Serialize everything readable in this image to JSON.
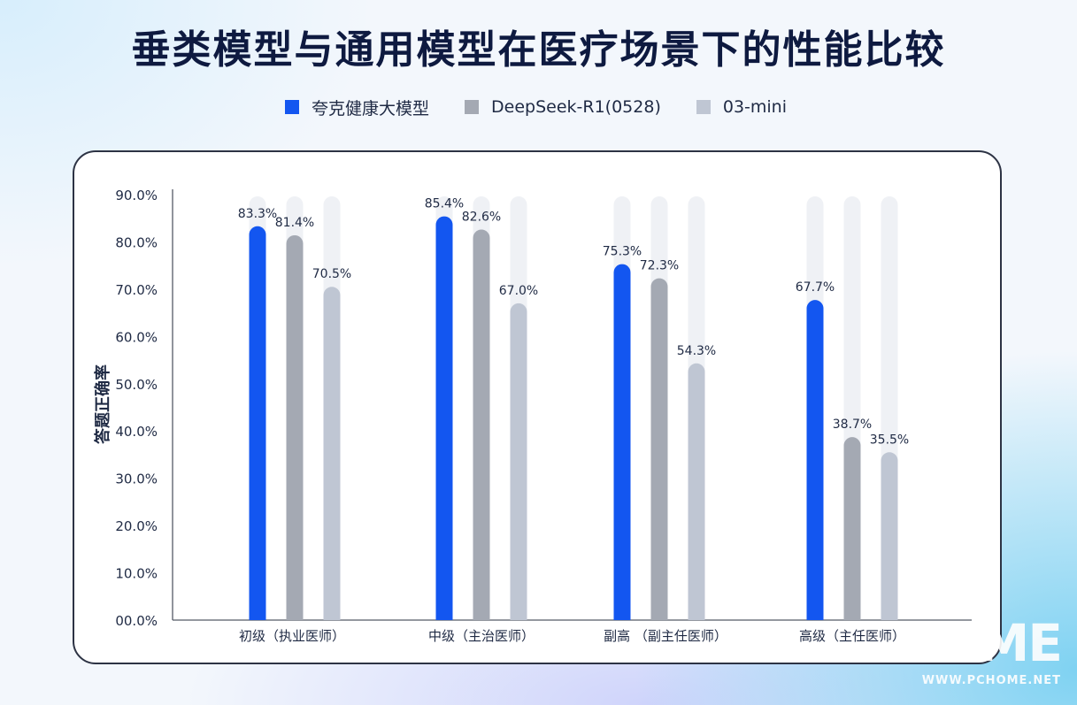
{
  "chart_data": {
    "type": "bar",
    "title": "垂类模型与通用模型在医疗场景下的性能比较",
    "ylabel": "答题正确率",
    "xlabel": "",
    "ylim": [
      0,
      90
    ],
    "yticks": [
      "00.0%",
      "10.0%",
      "20.0%",
      "30.0%",
      "40.0%",
      "50.0%",
      "60.0%",
      "70.0%",
      "80.0%",
      "90.0%"
    ],
    "categories": [
      "初级（执业医师）",
      "中级（主治医师）",
      "副高 （副主任医师）",
      "高级（主任医师）"
    ],
    "legend_position": "top",
    "series": [
      {
        "name": "夸克健康大模型",
        "color": "#1356f0",
        "values": [
          83.3,
          85.4,
          75.3,
          67.7
        ],
        "labels": [
          "83.3%",
          "85.4%",
          "75.3%",
          "67.7%"
        ]
      },
      {
        "name": "DeepSeek-R1(0528)",
        "color": "#a4a9b3",
        "values": [
          81.4,
          82.6,
          72.3,
          38.7
        ],
        "labels": [
          "81.4%",
          "82.6%",
          "72.3%",
          "38.7%"
        ]
      },
      {
        "name": "03-mini",
        "color": "#bfc6d3",
        "values": [
          70.5,
          67.0,
          54.3,
          35.5
        ],
        "labels": [
          "70.5%",
          "67.0%",
          "54.3%",
          "35.5%"
        ]
      }
    ],
    "track_color": "#eff1f5"
  },
  "watermark": {
    "big": "OME",
    "small": "WWW.PCHOME.NET"
  }
}
